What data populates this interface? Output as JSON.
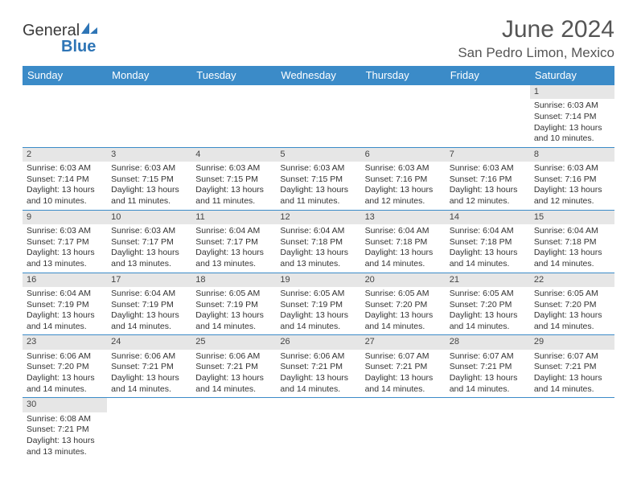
{
  "logo": {
    "text_general": "General",
    "text_blue": "Blue"
  },
  "header": {
    "month_title": "June 2024",
    "location": "San Pedro Limon, Mexico"
  },
  "colors": {
    "header_bg": "#3b8bc8",
    "header_text": "#ffffff",
    "daynum_bg": "#e6e6e6",
    "row_border": "#3b8bc8",
    "logo_blue": "#2e75b6",
    "text": "#333333",
    "title_text": "#555555"
  },
  "daysOfWeek": [
    "Sunday",
    "Monday",
    "Tuesday",
    "Wednesday",
    "Thursday",
    "Friday",
    "Saturday"
  ],
  "calendar": {
    "firstWeekday": 6,
    "cells": [
      {
        "d": 1,
        "sr": "6:03 AM",
        "ss": "7:14 PM",
        "dl": "13 hours and 10 minutes."
      },
      {
        "d": 2,
        "sr": "6:03 AM",
        "ss": "7:14 PM",
        "dl": "13 hours and 10 minutes."
      },
      {
        "d": 3,
        "sr": "6:03 AM",
        "ss": "7:15 PM",
        "dl": "13 hours and 11 minutes."
      },
      {
        "d": 4,
        "sr": "6:03 AM",
        "ss": "7:15 PM",
        "dl": "13 hours and 11 minutes."
      },
      {
        "d": 5,
        "sr": "6:03 AM",
        "ss": "7:15 PM",
        "dl": "13 hours and 11 minutes."
      },
      {
        "d": 6,
        "sr": "6:03 AM",
        "ss": "7:16 PM",
        "dl": "13 hours and 12 minutes."
      },
      {
        "d": 7,
        "sr": "6:03 AM",
        "ss": "7:16 PM",
        "dl": "13 hours and 12 minutes."
      },
      {
        "d": 8,
        "sr": "6:03 AM",
        "ss": "7:16 PM",
        "dl": "13 hours and 12 minutes."
      },
      {
        "d": 9,
        "sr": "6:03 AM",
        "ss": "7:17 PM",
        "dl": "13 hours and 13 minutes."
      },
      {
        "d": 10,
        "sr": "6:03 AM",
        "ss": "7:17 PM",
        "dl": "13 hours and 13 minutes."
      },
      {
        "d": 11,
        "sr": "6:04 AM",
        "ss": "7:17 PM",
        "dl": "13 hours and 13 minutes."
      },
      {
        "d": 12,
        "sr": "6:04 AM",
        "ss": "7:18 PM",
        "dl": "13 hours and 13 minutes."
      },
      {
        "d": 13,
        "sr": "6:04 AM",
        "ss": "7:18 PM",
        "dl": "13 hours and 14 minutes."
      },
      {
        "d": 14,
        "sr": "6:04 AM",
        "ss": "7:18 PM",
        "dl": "13 hours and 14 minutes."
      },
      {
        "d": 15,
        "sr": "6:04 AM",
        "ss": "7:18 PM",
        "dl": "13 hours and 14 minutes."
      },
      {
        "d": 16,
        "sr": "6:04 AM",
        "ss": "7:19 PM",
        "dl": "13 hours and 14 minutes."
      },
      {
        "d": 17,
        "sr": "6:04 AM",
        "ss": "7:19 PM",
        "dl": "13 hours and 14 minutes."
      },
      {
        "d": 18,
        "sr": "6:05 AM",
        "ss": "7:19 PM",
        "dl": "13 hours and 14 minutes."
      },
      {
        "d": 19,
        "sr": "6:05 AM",
        "ss": "7:19 PM",
        "dl": "13 hours and 14 minutes."
      },
      {
        "d": 20,
        "sr": "6:05 AM",
        "ss": "7:20 PM",
        "dl": "13 hours and 14 minutes."
      },
      {
        "d": 21,
        "sr": "6:05 AM",
        "ss": "7:20 PM",
        "dl": "13 hours and 14 minutes."
      },
      {
        "d": 22,
        "sr": "6:05 AM",
        "ss": "7:20 PM",
        "dl": "13 hours and 14 minutes."
      },
      {
        "d": 23,
        "sr": "6:06 AM",
        "ss": "7:20 PM",
        "dl": "13 hours and 14 minutes."
      },
      {
        "d": 24,
        "sr": "6:06 AM",
        "ss": "7:21 PM",
        "dl": "13 hours and 14 minutes."
      },
      {
        "d": 25,
        "sr": "6:06 AM",
        "ss": "7:21 PM",
        "dl": "13 hours and 14 minutes."
      },
      {
        "d": 26,
        "sr": "6:06 AM",
        "ss": "7:21 PM",
        "dl": "13 hours and 14 minutes."
      },
      {
        "d": 27,
        "sr": "6:07 AM",
        "ss": "7:21 PM",
        "dl": "13 hours and 14 minutes."
      },
      {
        "d": 28,
        "sr": "6:07 AM",
        "ss": "7:21 PM",
        "dl": "13 hours and 14 minutes."
      },
      {
        "d": 29,
        "sr": "6:07 AM",
        "ss": "7:21 PM",
        "dl": "13 hours and 14 minutes."
      },
      {
        "d": 30,
        "sr": "6:08 AM",
        "ss": "7:21 PM",
        "dl": "13 hours and 13 minutes."
      }
    ]
  },
  "labels": {
    "sunrise": "Sunrise:",
    "sunset": "Sunset:",
    "daylight": "Daylight:"
  }
}
